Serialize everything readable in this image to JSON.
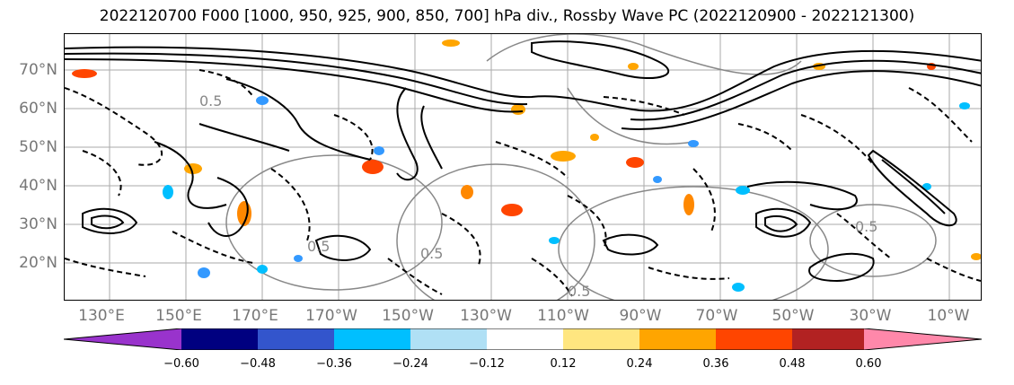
{
  "title": "2022120700 F000 [1000, 950, 925, 900, 850, 700] hPa div., Rossby Wave PC (2022120900 - 2022121300)",
  "map": {
    "lat_labels": [
      "70°N",
      "60°N",
      "50°N",
      "40°N",
      "30°N",
      "20°N"
    ],
    "lon_labels": [
      "130°E",
      "150°E",
      "170°E",
      "170°W",
      "150°W",
      "130°W",
      "110°W",
      "90°W",
      "70°W",
      "50°W",
      "30°W",
      "10°W"
    ],
    "contour_labels": [
      "0.5",
      "0.5",
      "0.5",
      "0.5",
      "0.5"
    ]
  },
  "colorbar": {
    "ticks": [
      "−0.60",
      "−0.48",
      "−0.36",
      "−0.24",
      "−0.12",
      "0.12",
      "0.24",
      "0.36",
      "0.48",
      "0.60"
    ],
    "colors": [
      "#9933cc",
      "#000080",
      "#3355cc",
      "#00bfff",
      "#b0e0f5",
      "#ffffff",
      "#ffe680",
      "#ffa500",
      "#ff4500",
      "#b22222",
      "#ff88aa",
      "#ff88aa"
    ]
  }
}
